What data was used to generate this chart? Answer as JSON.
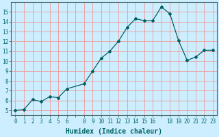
{
  "x": [
    0,
    1,
    2,
    3,
    4,
    5,
    6,
    8,
    9,
    10,
    11,
    12,
    13,
    14,
    15,
    16,
    17,
    18,
    19,
    20,
    21,
    22,
    23
  ],
  "y": [
    5.0,
    5.1,
    6.1,
    5.9,
    6.4,
    6.3,
    7.2,
    7.7,
    9.0,
    10.3,
    11.0,
    12.0,
    13.4,
    14.3,
    14.1,
    14.1,
    15.5,
    14.8,
    12.1,
    10.1,
    10.4,
    11.1,
    11.1
  ],
  "line_color": "#006060",
  "marker": "D",
  "markersize": 2.0,
  "linewidth": 0.9,
  "xlabel": "Humidex (Indice chaleur)",
  "xlim": [
    -0.5,
    23.5
  ],
  "ylim": [
    4.5,
    16.0
  ],
  "xticks": [
    0,
    1,
    2,
    3,
    4,
    5,
    6,
    7,
    8,
    9,
    10,
    11,
    12,
    13,
    14,
    15,
    16,
    17,
    18,
    19,
    20,
    21,
    22,
    23
  ],
  "xtick_labels": [
    "0",
    "1",
    "2",
    "3",
    "4",
    "5",
    "6",
    "",
    "8",
    "9",
    "10",
    "11",
    "12",
    "13",
    "14",
    "15",
    "16",
    "",
    "18",
    "19",
    "20",
    "21",
    "22",
    "23"
  ],
  "yticks": [
    5,
    6,
    7,
    8,
    9,
    10,
    11,
    12,
    13,
    14,
    15
  ],
  "ytick_labels": [
    "5",
    "6",
    "7",
    "8",
    "9",
    "10",
    "11",
    "12",
    "13",
    "14",
    "15"
  ],
  "background_color": "#cceeff",
  "grid_color": "#ee9999",
  "font_color": "#006666",
  "tick_fontsize": 5.5,
  "xlabel_fontsize": 7.0
}
